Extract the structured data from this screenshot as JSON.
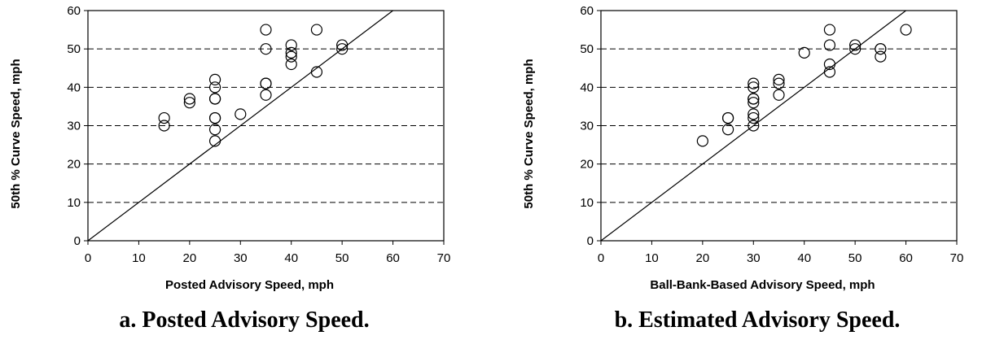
{
  "chart_data": [
    {
      "type": "scatter",
      "caption": "a.  Posted Advisory Speed.",
      "xlabel": "Posted Advisory Speed, mph",
      "ylabel": "50th % Curve Speed, mph",
      "xlim": [
        0,
        70
      ],
      "ylim": [
        0,
        60
      ],
      "xticks": [
        0,
        10,
        20,
        30,
        40,
        50,
        60,
        70
      ],
      "yticks": [
        0,
        10,
        20,
        30,
        40,
        50,
        60
      ],
      "grid": "horizontal-dashed",
      "reference_line": "y = x",
      "points": [
        {
          "x": 15,
          "y": 32
        },
        {
          "x": 15,
          "y": 30
        },
        {
          "x": 20,
          "y": 37
        },
        {
          "x": 20,
          "y": 36
        },
        {
          "x": 25,
          "y": 42
        },
        {
          "x": 25,
          "y": 40
        },
        {
          "x": 25,
          "y": 37
        },
        {
          "x": 25,
          "y": 37
        },
        {
          "x": 25,
          "y": 32
        },
        {
          "x": 25,
          "y": 32
        },
        {
          "x": 25,
          "y": 29
        },
        {
          "x": 25,
          "y": 26
        },
        {
          "x": 30,
          "y": 33
        },
        {
          "x": 35,
          "y": 55
        },
        {
          "x": 35,
          "y": 50
        },
        {
          "x": 35,
          "y": 41
        },
        {
          "x": 35,
          "y": 41
        },
        {
          "x": 35,
          "y": 38
        },
        {
          "x": 40,
          "y": 51
        },
        {
          "x": 40,
          "y": 49
        },
        {
          "x": 40,
          "y": 48
        },
        {
          "x": 40,
          "y": 46
        },
        {
          "x": 45,
          "y": 55
        },
        {
          "x": 45,
          "y": 44
        },
        {
          "x": 50,
          "y": 51
        },
        {
          "x": 50,
          "y": 50
        }
      ]
    },
    {
      "type": "scatter",
      "caption": "b.  Estimated Advisory Speed.",
      "xlabel": "Ball-Bank-Based Advisory Speed, mph",
      "ylabel": "50th % Curve Speed, mph",
      "xlim": [
        0,
        70
      ],
      "ylim": [
        0,
        60
      ],
      "xticks": [
        0,
        10,
        20,
        30,
        40,
        50,
        60,
        70
      ],
      "yticks": [
        0,
        10,
        20,
        30,
        40,
        50,
        60
      ],
      "grid": "horizontal-dashed",
      "reference_line": "y = x",
      "points": [
        {
          "x": 20,
          "y": 26
        },
        {
          "x": 25,
          "y": 32
        },
        {
          "x": 25,
          "y": 32
        },
        {
          "x": 25,
          "y": 29
        },
        {
          "x": 30,
          "y": 41
        },
        {
          "x": 30,
          "y": 40
        },
        {
          "x": 30,
          "y": 37
        },
        {
          "x": 30,
          "y": 37
        },
        {
          "x": 30,
          "y": 36
        },
        {
          "x": 30,
          "y": 33
        },
        {
          "x": 30,
          "y": 32
        },
        {
          "x": 30,
          "y": 30
        },
        {
          "x": 35,
          "y": 42
        },
        {
          "x": 35,
          "y": 41
        },
        {
          "x": 35,
          "y": 38
        },
        {
          "x": 40,
          "y": 49
        },
        {
          "x": 45,
          "y": 55
        },
        {
          "x": 45,
          "y": 51
        },
        {
          "x": 45,
          "y": 46
        },
        {
          "x": 45,
          "y": 44
        },
        {
          "x": 50,
          "y": 51
        },
        {
          "x": 50,
          "y": 50
        },
        {
          "x": 55,
          "y": 50
        },
        {
          "x": 55,
          "y": 50
        },
        {
          "x": 55,
          "y": 48
        },
        {
          "x": 60,
          "y": 55
        }
      ]
    }
  ]
}
